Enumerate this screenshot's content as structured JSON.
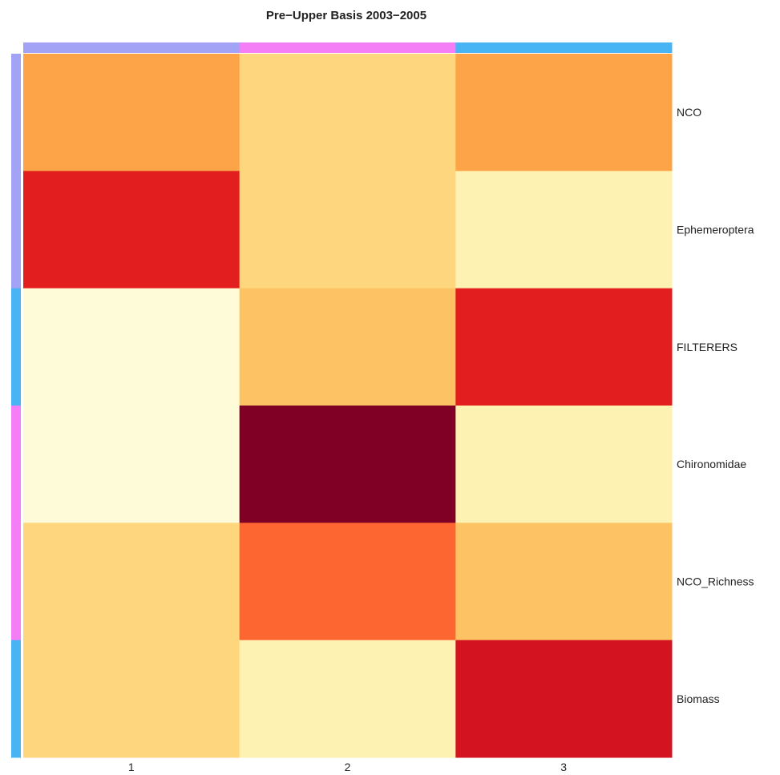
{
  "chart_data": {
    "type": "heatmap",
    "title": "Pre−Upper Basis 2003−2005",
    "columns": [
      "1",
      "2",
      "3"
    ],
    "rows": [
      "NCO",
      "Ephemeroptera",
      "FILTERERS",
      "Chironomidae",
      "NCO_Richness",
      "Biomass"
    ],
    "values": [
      [
        0.4,
        0.2,
        0.4
      ],
      [
        0.75,
        0.2,
        0.08
      ],
      [
        0.0,
        0.3,
        0.75
      ],
      [
        0.0,
        1.0,
        0.08
      ],
      [
        0.15,
        0.55,
        0.3
      ],
      [
        0.15,
        0.05,
        0.8
      ]
    ],
    "cell_colors": [
      [
        "#fca447",
        "#fdd67d",
        "#fca447"
      ],
      [
        "#e21f1e",
        "#fdd67d",
        "#fef2b2"
      ],
      [
        "#fefcd8",
        "#fdc263",
        "#e21f1e"
      ],
      [
        "#fefcd8",
        "#800025",
        "#fef2b2"
      ],
      [
        "#fdd67d",
        "#fd6631",
        "#fdc263"
      ],
      [
        "#fdd67d",
        "#fef2b2",
        "#d31320"
      ]
    ],
    "column_groups": [
      "#a3a3f5",
      "#f47ef5",
      "#48b4f4"
    ],
    "row_groups": [
      "#a3a3f5",
      "#a3a3f5",
      "#48b4f4",
      "#f47ef5",
      "#f47ef5",
      "#48b4f4"
    ],
    "color_scale": [
      "#fefcd8",
      "#800025"
    ],
    "grid": false,
    "legend": "none"
  }
}
